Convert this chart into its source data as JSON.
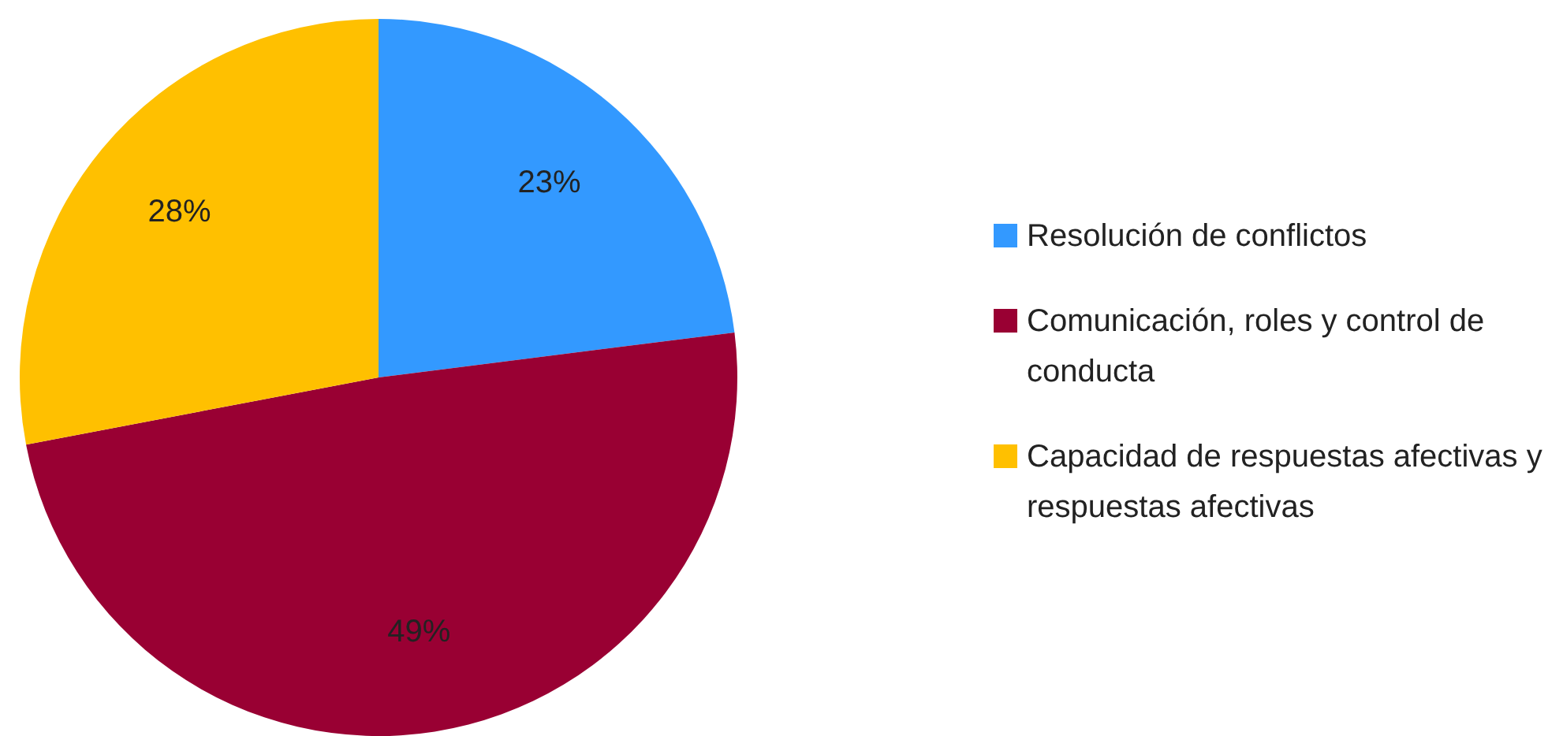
{
  "chart_data": {
    "type": "pie",
    "categories": [
      "Resolución de conflictos",
      "Comunicación, roles y control de conducta",
      "Capacidad de respuestas afectivas y respuestas afectivas"
    ],
    "values": [
      23,
      49,
      28
    ],
    "colors": [
      "#3399ff",
      "#990033",
      "#ffc000"
    ],
    "value_labels": [
      "23%",
      "49%",
      "28%"
    ],
    "legend": "right"
  }
}
